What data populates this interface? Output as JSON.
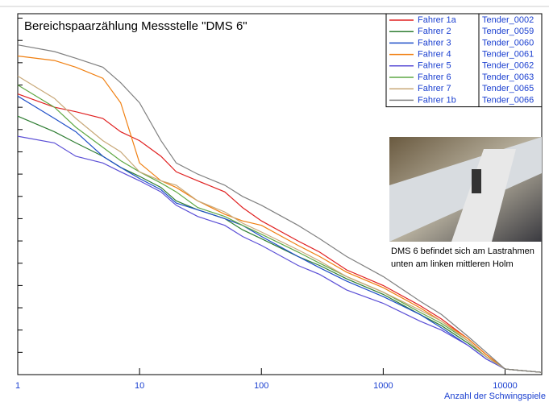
{
  "chart_data": {
    "type": "line",
    "title": "Bereichspaarzählung Messstelle \"DMS 6\"",
    "x_label": "Anzahl der Schwingspiele",
    "x": [
      1,
      2,
      3,
      5,
      7,
      10,
      15,
      20,
      30,
      50,
      70,
      100,
      200,
      300,
      500,
      1000,
      2000,
      3000,
      5000,
      7000,
      10000,
      20000
    ],
    "xlim": [
      1,
      20000
    ],
    "xticks": [
      1,
      10,
      100,
      1000,
      10000
    ],
    "x_log": true,
    "ylim": [
      0,
      16.2
    ],
    "yticks": [
      0,
      1,
      2,
      3,
      4,
      5,
      6,
      7,
      8,
      9,
      10,
      11,
      12,
      13,
      14,
      15,
      16
    ],
    "series": [
      {
        "name": "Fahrer 1a",
        "tender": "Tender_0002",
        "color": "#e02020",
        "values": [
          12.6,
          12.0,
          11.8,
          11.5,
          10.9,
          10.5,
          9.8,
          9.1,
          8.7,
          8.2,
          7.5,
          6.9,
          6.0,
          5.5,
          4.7,
          4.0,
          3.1,
          2.5,
          1.6,
          0.9,
          0.25,
          0.1
        ]
      },
      {
        "name": "Fahrer 2",
        "tender": "Tender_0059",
        "color": "#2e7d32",
        "values": [
          11.6,
          10.9,
          10.4,
          9.8,
          9.3,
          8.9,
          8.4,
          7.8,
          7.4,
          7.0,
          6.5,
          6.1,
          5.3,
          4.9,
          4.3,
          3.6,
          2.7,
          2.2,
          1.4,
          0.8,
          0.25,
          0.1
        ]
      },
      {
        "name": "Fahrer 3",
        "tender": "Tender_0060",
        "color": "#1f4fc8",
        "values": [
          12.5,
          11.5,
          10.9,
          9.8,
          9.3,
          8.8,
          8.3,
          7.7,
          7.4,
          7.0,
          6.7,
          6.2,
          5.3,
          4.8,
          4.2,
          3.5,
          2.7,
          2.1,
          1.3,
          0.7,
          0.25,
          0.1
        ]
      },
      {
        "name": "Fahrer 4",
        "tender": "Tender_0061",
        "color": "#f07f10",
        "values": [
          14.3,
          14.1,
          13.8,
          13.3,
          12.2,
          9.5,
          8.7,
          8.4,
          7.8,
          7.2,
          6.9,
          6.7,
          5.8,
          5.3,
          4.6,
          3.9,
          3.0,
          2.4,
          1.6,
          0.9,
          0.25,
          0.1
        ]
      },
      {
        "name": "Fahrer 5",
        "tender": "Tender_0062",
        "color": "#5b4fd6",
        "values": [
          10.7,
          10.4,
          9.8,
          9.5,
          9.1,
          8.7,
          8.2,
          7.6,
          7.1,
          6.7,
          6.2,
          5.8,
          4.9,
          4.5,
          3.8,
          3.2,
          2.4,
          2.0,
          1.3,
          0.7,
          0.25,
          0.1
        ]
      },
      {
        "name": "Fahrer 6",
        "tender": "Tender_0063",
        "color": "#5fa845",
        "values": [
          13.0,
          12.0,
          11.1,
          10.2,
          9.6,
          9.1,
          8.6,
          8.2,
          7.5,
          7.1,
          6.7,
          6.3,
          5.5,
          5.0,
          4.4,
          3.7,
          2.8,
          2.3,
          1.5,
          0.8,
          0.25,
          0.1
        ]
      },
      {
        "name": "Fahrer 7",
        "tender": "Tender_0065",
        "color": "#c8a878",
        "values": [
          13.4,
          12.4,
          11.5,
          10.5,
          10.0,
          9.1,
          8.7,
          8.5,
          7.8,
          7.3,
          6.8,
          6.4,
          5.6,
          5.1,
          4.4,
          3.7,
          2.9,
          2.4,
          1.5,
          0.8,
          0.25,
          0.1
        ]
      },
      {
        "name": "Fahrer 1b",
        "tender": "Tender_0066",
        "color": "#808080",
        "values": [
          14.8,
          14.5,
          14.2,
          13.8,
          13.1,
          12.2,
          10.5,
          9.5,
          9.0,
          8.5,
          8.0,
          7.6,
          6.7,
          6.1,
          5.3,
          4.4,
          3.3,
          2.7,
          1.7,
          1.0,
          0.25,
          0.1
        ]
      }
    ],
    "photo_caption": [
      "DMS 6 befindet sich am Lastrahmen",
      "unten am linken mittleren Holm"
    ]
  }
}
